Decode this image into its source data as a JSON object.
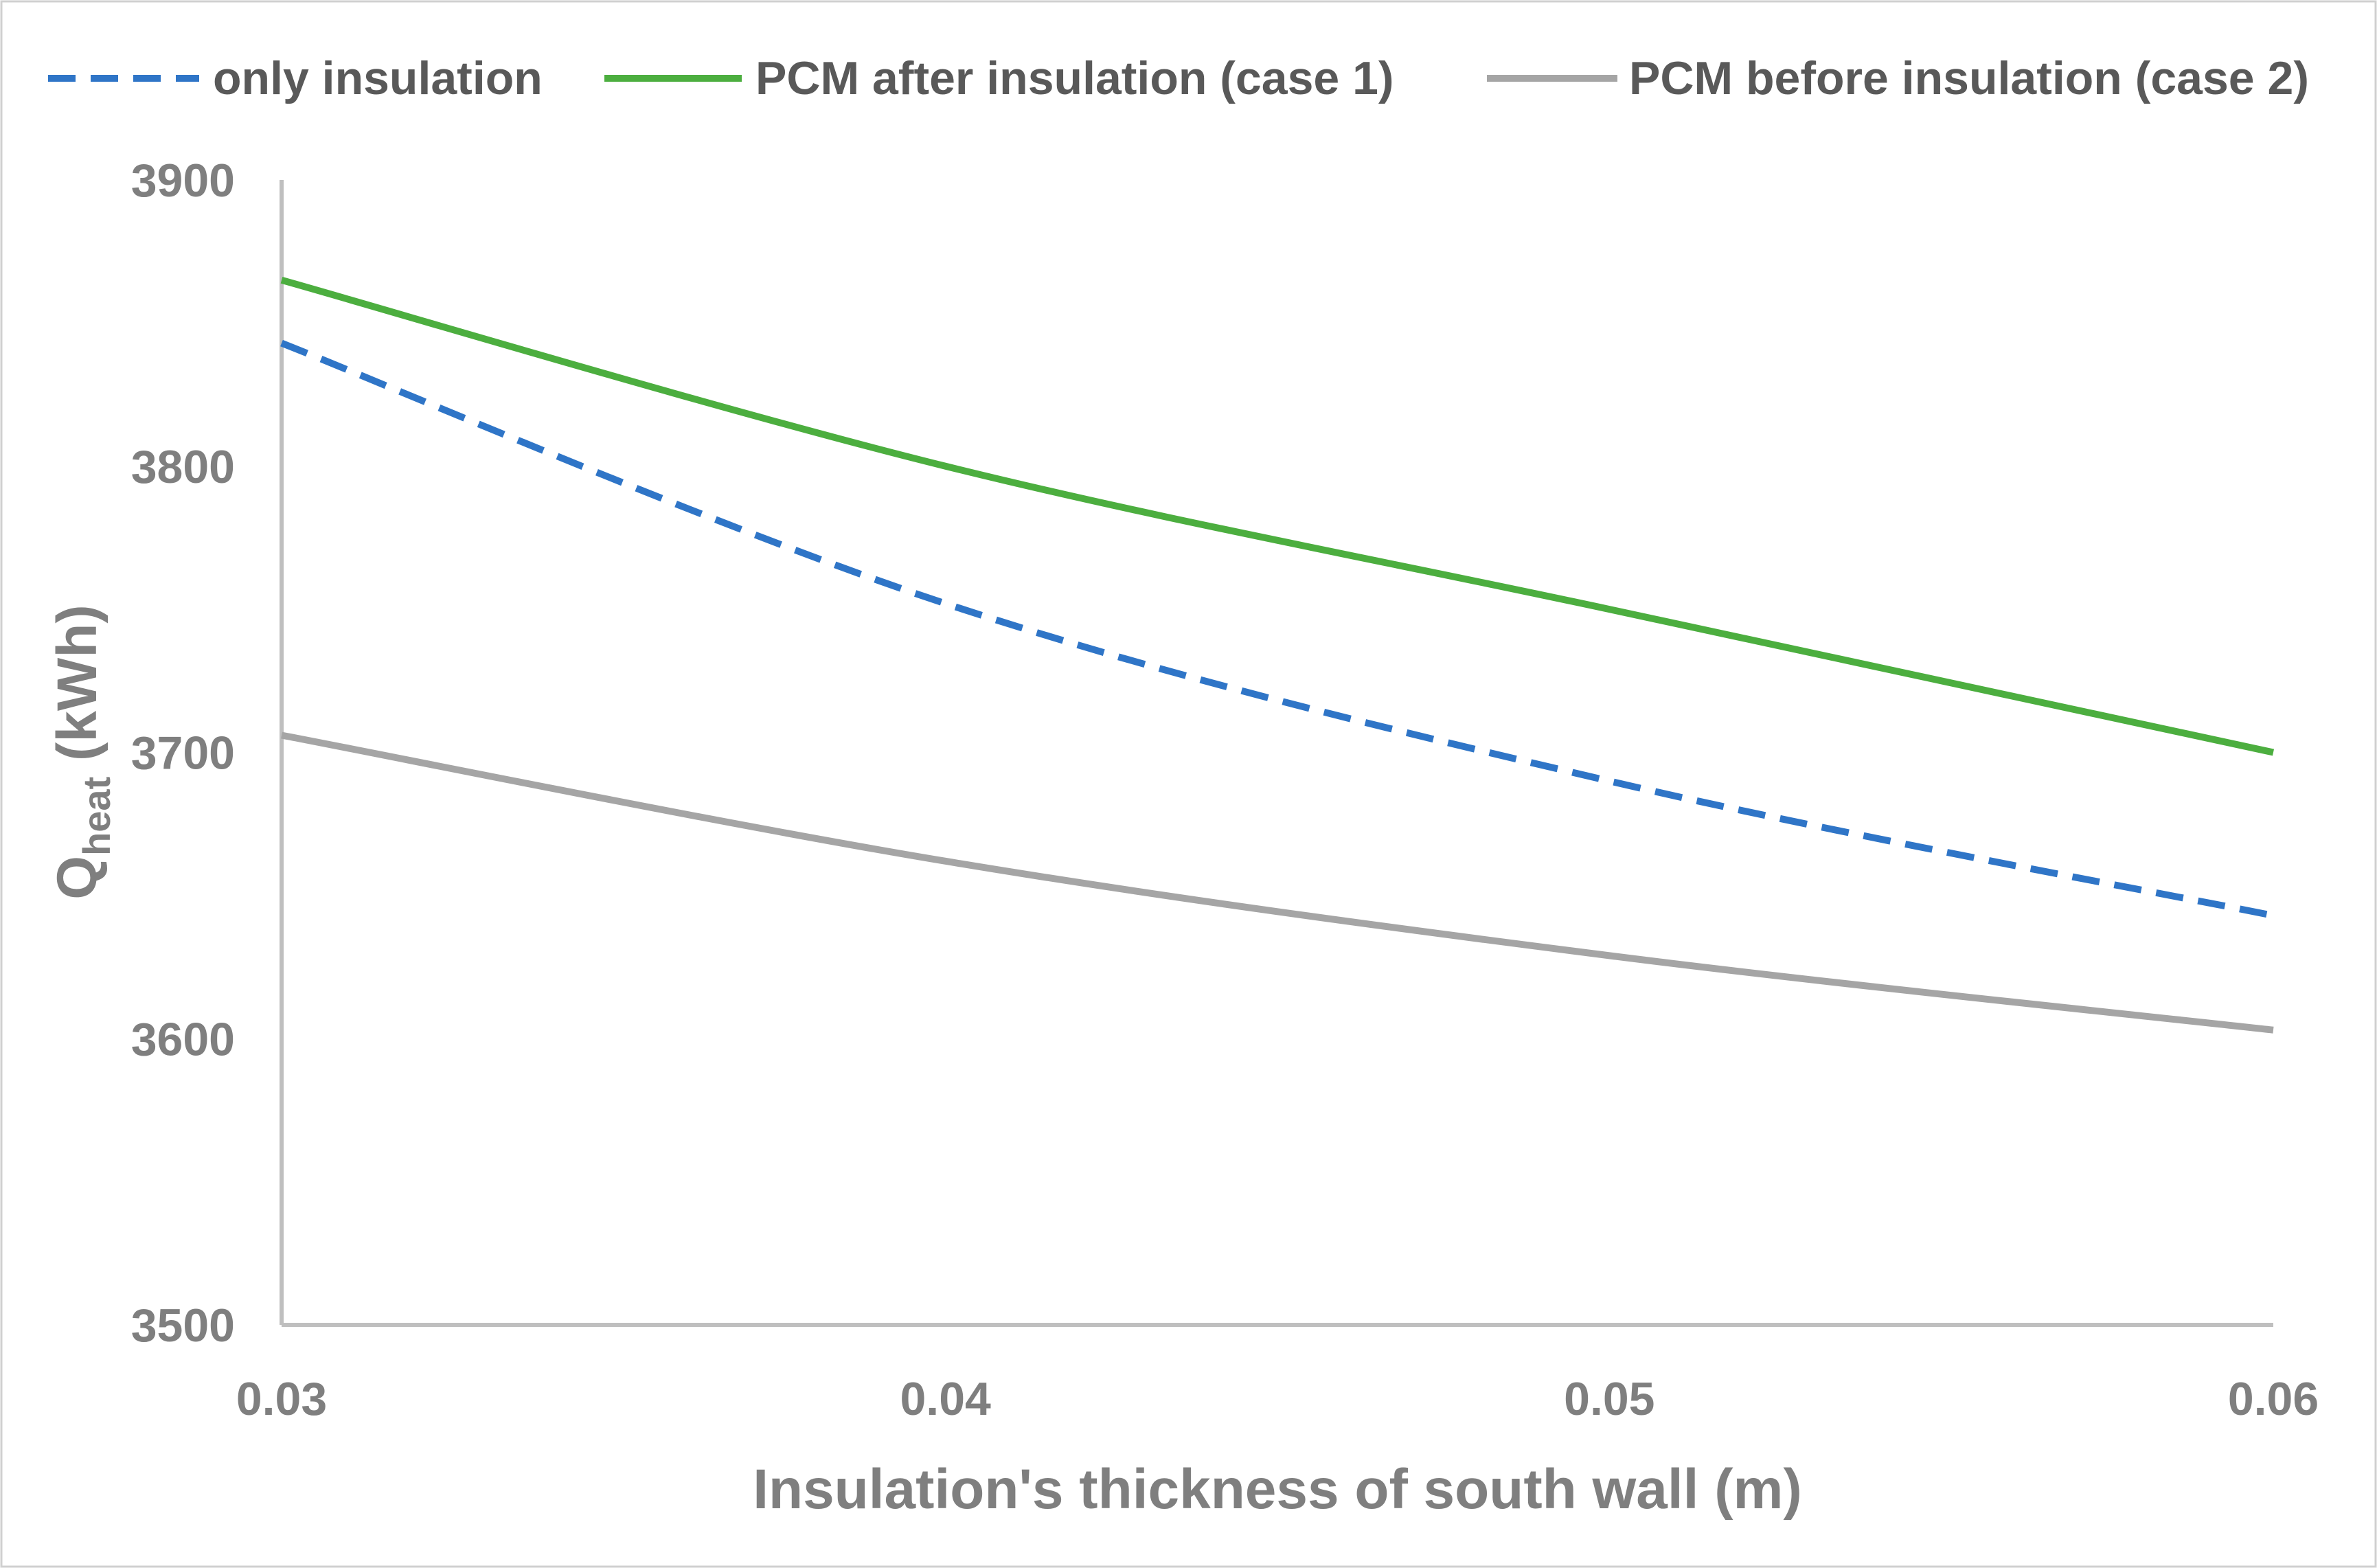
{
  "chart_data": {
    "type": "line",
    "title": "",
    "xlabel": "Insulation's thickness of south wall (m)",
    "ylabel": "Q",
    "ylabel_sub": "heat",
    "ylabel_unit": " (kWh)",
    "x": [
      0.03,
      0.04,
      0.05,
      0.06
    ],
    "x_tick_labels": [
      "0.03",
      "0.04",
      "0.05",
      "0.06"
    ],
    "xlim": [
      0.03,
      0.06
    ],
    "ylim": [
      3500,
      3900
    ],
    "y_ticks": [
      3500,
      3600,
      3700,
      3800,
      3900
    ],
    "y_tick_labels": [
      "3500",
      "3600",
      "3700",
      "3800",
      "3900"
    ],
    "grid": false,
    "legend_position": "top",
    "series": [
      {
        "name": "only insulation",
        "values": [
          3843,
          3752,
          3690,
          3643
        ],
        "color": "#2f75c7",
        "dash": "dashed"
      },
      {
        "name": "PCM after insulation (case 1)",
        "values": [
          3865,
          3800,
          3750,
          3700
        ],
        "color": "#4cae3f",
        "dash": "solid"
      },
      {
        "name": "PCM before insulation (case 2)",
        "values": [
          3706,
          3662,
          3629,
          3603
        ],
        "color": "#a5a5a5",
        "dash": "solid"
      }
    ]
  }
}
